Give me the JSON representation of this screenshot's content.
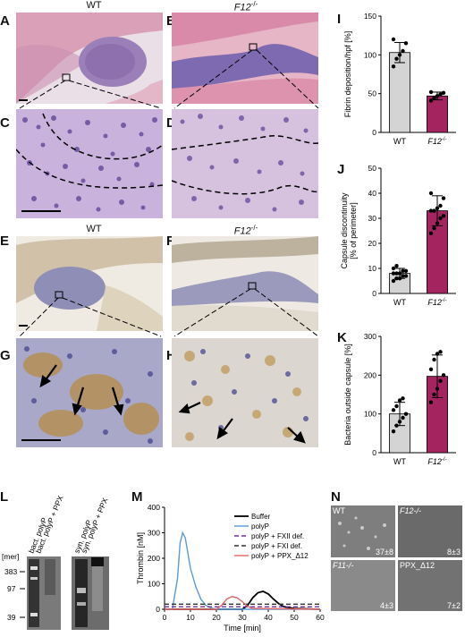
{
  "panels": {
    "A": {
      "letter": "A",
      "title": "WT"
    },
    "B": {
      "letter": "B",
      "title": "F12-/-"
    },
    "C": {
      "letter": "C"
    },
    "D": {
      "letter": "D"
    },
    "E": {
      "letter": "E",
      "title": "WT"
    },
    "F": {
      "letter": "F",
      "title": "F12-/-"
    },
    "G": {
      "letter": "G"
    },
    "H": {
      "letter": "H"
    },
    "I": {
      "letter": "I"
    },
    "J": {
      "letter": "J"
    },
    "K": {
      "letter": "K"
    },
    "L": {
      "letter": "L",
      "lanes": [
        "bact. polyP",
        "bact. polyP + PPX",
        "syn. polyP",
        "syn. polyP + PPX"
      ],
      "ylabel": "[mer]",
      "markers": [
        "383",
        "97",
        "39"
      ]
    },
    "M": {
      "letter": "M"
    },
    "N": {
      "letter": "N",
      "tiles": [
        {
          "label": "WT",
          "count": "37±8"
        },
        {
          "label": "F12-/-",
          "count": "8±3"
        },
        {
          "label": "F11-/-",
          "count": "4±3"
        },
        {
          "label": "PPX_Δ12",
          "count": "7±2"
        }
      ]
    }
  },
  "chart_data": [
    {
      "id": "I",
      "type": "bar",
      "categories": [
        "WT",
        "F12-/-"
      ],
      "values": [
        103,
        47
      ],
      "errors": [
        13,
        5
      ],
      "points": [
        [
          85,
          95,
          100,
          105,
          115,
          120
        ],
        [
          41,
          44,
          47,
          49,
          51,
          52
        ]
      ],
      "ylabel": "Fibrin deposition/hpf [%]",
      "ylim": [
        0,
        150
      ],
      "yticks": [
        0,
        50,
        100,
        150
      ],
      "colors": [
        "#d4d4d4",
        "#a3245f"
      ]
    },
    {
      "id": "J",
      "type": "bar",
      "categories": [
        "WT",
        "F12-/-"
      ],
      "values": [
        8,
        33
      ],
      "errors": [
        2,
        6
      ],
      "points": [
        [
          5,
          6,
          6,
          7,
          7,
          8,
          8,
          8,
          9,
          9,
          10,
          11
        ],
        [
          24,
          26,
          28,
          30,
          31,
          33,
          33,
          34,
          35,
          38,
          40
        ]
      ],
      "ylabel": "Capsule discontinuity [% of perimeter]",
      "ylim": [
        0,
        50
      ],
      "yticks": [
        0,
        10,
        20,
        30,
        40,
        50
      ],
      "colors": [
        "#d4d4d4",
        "#a3245f"
      ]
    },
    {
      "id": "K",
      "type": "bar",
      "categories": [
        "WT",
        "F12-/-"
      ],
      "values": [
        100,
        197
      ],
      "errors": [
        30,
        55
      ],
      "points": [
        [
          55,
          70,
          80,
          90,
          100,
          110,
          120,
          135,
          140
        ],
        [
          130,
          150,
          165,
          185,
          200,
          215,
          240,
          255,
          260
        ]
      ],
      "ylabel": "Bacteria outside capsule [%]",
      "ylim": [
        0,
        300
      ],
      "yticks": [
        0,
        100,
        200,
        300
      ],
      "colors": [
        "#d4d4d4",
        "#a3245f"
      ]
    },
    {
      "id": "M",
      "type": "line",
      "xlabel": "Time [min]",
      "ylabel": "Thrombin [nM]",
      "xlim": [
        0,
        60
      ],
      "ylim": [
        0,
        400
      ],
      "xticks": [
        0,
        10,
        20,
        30,
        40,
        50,
        60
      ],
      "yticks": [
        0,
        100,
        200,
        300,
        400
      ],
      "series": [
        {
          "name": "Buffer",
          "color": "#000000",
          "dash": "",
          "x": [
            0,
            30,
            32,
            34,
            36,
            38,
            40,
            42,
            44,
            46,
            50,
            60
          ],
          "y": [
            0,
            0,
            15,
            45,
            65,
            70,
            60,
            40,
            22,
            10,
            3,
            0
          ]
        },
        {
          "name": "polyP",
          "color": "#5b9bd5",
          "dash": "",
          "x": [
            0,
            3,
            5,
            6,
            7,
            8,
            9,
            10,
            12,
            14,
            16,
            18,
            20,
            60
          ],
          "y": [
            0,
            0,
            120,
            260,
            300,
            280,
            220,
            160,
            90,
            40,
            15,
            5,
            0,
            0
          ]
        },
        {
          "name": "polyP + FXII def.",
          "color": "#7030a0",
          "dash": "5,3",
          "x": [
            0,
            60
          ],
          "y": [
            10,
            10
          ]
        },
        {
          "name": "polyP + FXI def.",
          "color": "#333333",
          "dash": "5,3",
          "x": [
            0,
            60
          ],
          "y": [
            20,
            20
          ]
        },
        {
          "name": "polyP + PPX_Δ12",
          "color": "#e06666",
          "dash": "",
          "x": [
            0,
            20,
            22,
            24,
            26,
            28,
            30,
            32,
            34,
            60
          ],
          "y": [
            0,
            0,
            15,
            40,
            50,
            45,
            30,
            12,
            3,
            0
          ]
        }
      ]
    }
  ]
}
